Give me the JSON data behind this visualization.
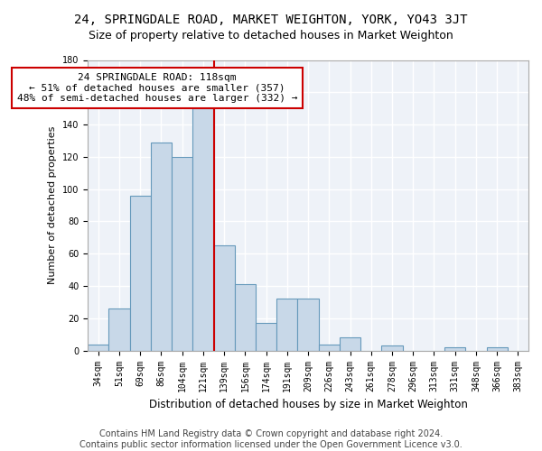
{
  "title": "24, SPRINGDALE ROAD, MARKET WEIGHTON, YORK, YO43 3JT",
  "subtitle": "Size of property relative to detached houses in Market Weighton",
  "xlabel": "Distribution of detached houses by size in Market Weighton",
  "ylabel": "Number of detached properties",
  "bar_color": "#c8d8e8",
  "bar_edge_color": "#6699bb",
  "bg_color": "#eef2f8",
  "grid_color": "#ffffff",
  "categories": [
    "34sqm",
    "51sqm",
    "69sqm",
    "86sqm",
    "104sqm",
    "121sqm",
    "139sqm",
    "156sqm",
    "174sqm",
    "191sqm",
    "209sqm",
    "226sqm",
    "243sqm",
    "261sqm",
    "278sqm",
    "296sqm",
    "313sqm",
    "331sqm",
    "348sqm",
    "366sqm",
    "383sqm"
  ],
  "values": [
    4,
    26,
    96,
    129,
    120,
    150,
    65,
    41,
    17,
    32,
    32,
    4,
    8,
    0,
    3,
    0,
    0,
    2,
    0,
    2,
    0
  ],
  "vline_x": 5.5,
  "vline_color": "#cc0000",
  "annotation_line1": "24 SPRINGDALE ROAD: 118sqm",
  "annotation_line2": "← 51% of detached houses are smaller (357)",
  "annotation_line3": "48% of semi-detached houses are larger (332) →",
  "annotation_box_color": "#ffffff",
  "annotation_box_edge": "#cc0000",
  "ylim": [
    0,
    180
  ],
  "yticks": [
    0,
    20,
    40,
    60,
    80,
    100,
    120,
    140,
    160,
    180
  ],
  "footnote": "Contains HM Land Registry data © Crown copyright and database right 2024.\nContains public sector information licensed under the Open Government Licence v3.0.",
  "title_fontsize": 10,
  "subtitle_fontsize": 9,
  "annotation_fontsize": 8,
  "footnote_fontsize": 7,
  "ylabel_fontsize": 8,
  "xlabel_fontsize": 8.5,
  "tick_fontsize": 7
}
